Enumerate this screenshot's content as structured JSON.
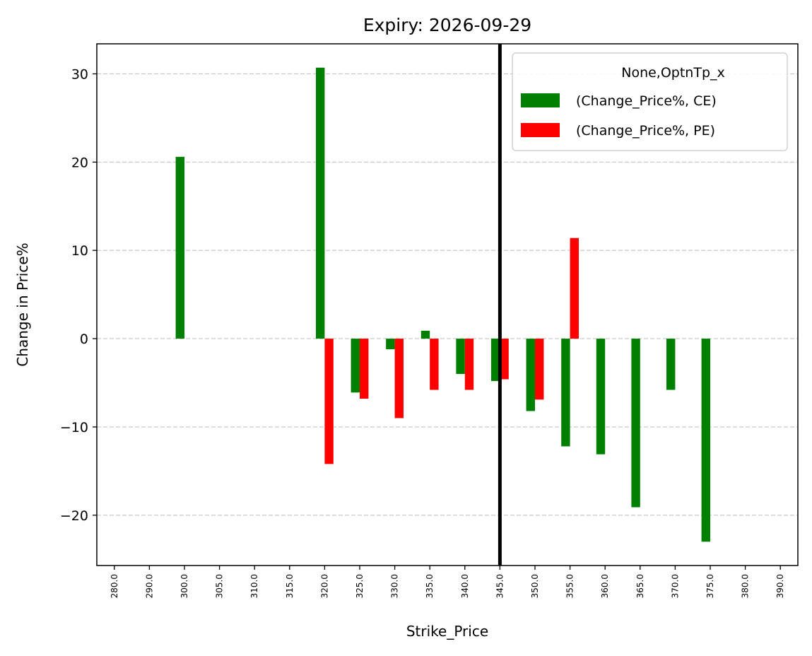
{
  "chart_data": {
    "type": "bar",
    "title": "Expiry: 2026-09-29",
    "xlabel": "Strike_Price",
    "ylabel": "Change in Price%",
    "ylim": [
      -25.7,
      33.4
    ],
    "yticks": [
      30,
      20,
      10,
      0,
      -10,
      -20
    ],
    "ytick_labels": [
      "30",
      "20",
      "10",
      "0",
      "−10",
      "−20"
    ],
    "grid": "horizontal dashed",
    "categories": [
      "280.0",
      "290.0",
      "300.0",
      "305.0",
      "310.0",
      "315.0",
      "320.0",
      "325.0",
      "330.0",
      "335.0",
      "340.0",
      "345.0",
      "350.0",
      "355.0",
      "360.0",
      "365.0",
      "370.0",
      "375.0",
      "380.0",
      "390.0"
    ],
    "series": [
      {
        "name": "(Change_Price%, CE)",
        "color": "#008000",
        "values": [
          null,
          null,
          20.6,
          null,
          null,
          null,
          30.7,
          -6.1,
          -1.2,
          0.9,
          -4.0,
          -4.8,
          -8.2,
          -12.2,
          -13.1,
          -19.1,
          -5.8,
          -23.0,
          null,
          null
        ]
      },
      {
        "name": "(Change_Price%, PE)",
        "color": "#ff0000",
        "values": [
          null,
          null,
          null,
          null,
          null,
          null,
          -14.2,
          -6.8,
          -9.0,
          -5.8,
          -5.8,
          -4.6,
          -6.9,
          11.4,
          null,
          null,
          null,
          null,
          null,
          null
        ]
      }
    ],
    "reference_line": {
      "category": "345.0",
      "color": "#000000"
    },
    "legend": {
      "title": "None,OptnTp_x",
      "position": "top-right"
    }
  }
}
